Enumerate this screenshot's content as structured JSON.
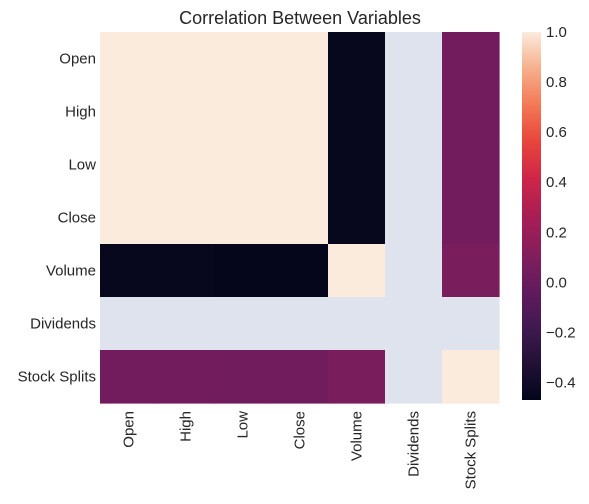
{
  "chart_data": {
    "type": "heatmap",
    "title": "Correlation Between Variables",
    "xlabel": "",
    "ylabel": "",
    "rows": [
      "Open",
      "High",
      "Low",
      "Close",
      "Volume",
      "Dividends",
      "Stock Splits"
    ],
    "columns": [
      "Open",
      "High",
      "Low",
      "Close",
      "Volume",
      "Dividends",
      "Stock Splits"
    ],
    "values": [
      [
        1.0,
        1.0,
        1.0,
        1.0,
        -0.45,
        null,
        0.04
      ],
      [
        1.0,
        1.0,
        1.0,
        1.0,
        -0.45,
        null,
        0.04
      ],
      [
        1.0,
        1.0,
        1.0,
        1.0,
        -0.45,
        null,
        0.04
      ],
      [
        1.0,
        1.0,
        1.0,
        1.0,
        -0.45,
        null,
        0.04
      ],
      [
        -0.45,
        -0.45,
        -0.46,
        -0.46,
        1.0,
        null,
        0.07
      ],
      [
        null,
        null,
        null,
        null,
        null,
        null,
        null
      ],
      [
        0.04,
        0.04,
        0.03,
        0.03,
        0.07,
        null,
        1.0
      ]
    ],
    "missing_color": "#dfe3ee",
    "colorbar": {
      "min": -0.47,
      "max": 1.0,
      "ticks": [
        "1.0",
        "0.8",
        "0.6",
        "0.4",
        "0.2",
        "0.0",
        "−0.2",
        "−0.4"
      ],
      "tick_values": [
        1.0,
        0.8,
        0.6,
        0.4,
        0.2,
        0.0,
        -0.2,
        -0.4
      ],
      "colormap": "rocket"
    },
    "grid": false,
    "legend": "colorbar-right"
  }
}
